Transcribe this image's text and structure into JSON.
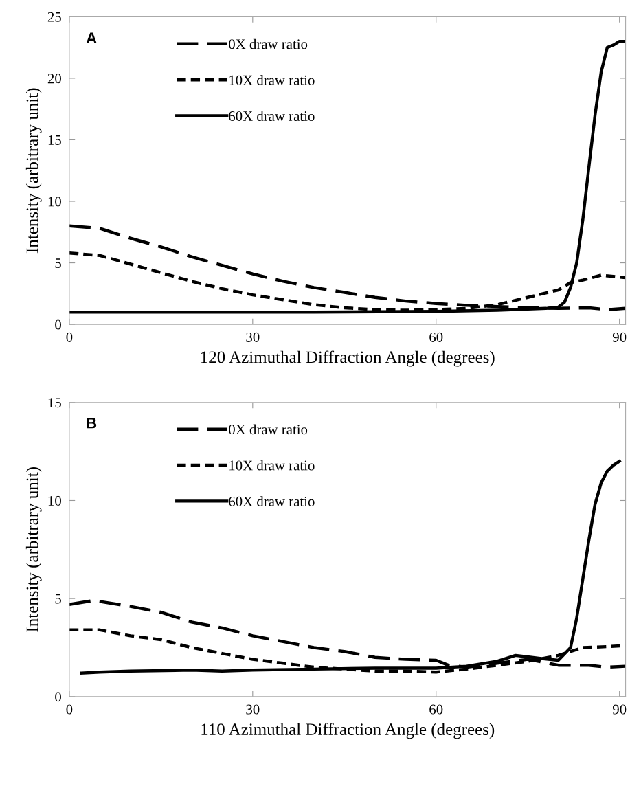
{
  "chart_data": [
    {
      "type": "line",
      "xlabel": "120 Azimuthal Diffraction Angle (degrees)",
      "ylabel": "Intensity (arbitrary unit)",
      "annotations": [
        "A"
      ],
      "xlim": [
        0,
        91
      ],
      "xticks": [
        0,
        30,
        60,
        90
      ],
      "ylim": [
        0,
        25
      ],
      "yticks": [
        0,
        5,
        10,
        15,
        20,
        25
      ],
      "grid": false,
      "legend": "top left",
      "marker": "none",
      "series": [
        {
          "name": "0X draw ratio",
          "color": "#000000",
          "line_style": "dashed",
          "x": [
            0,
            5,
            10,
            15,
            20,
            25,
            30,
            35,
            40,
            45,
            50,
            55,
            60,
            65,
            70,
            75,
            80,
            85,
            88,
            91
          ],
          "values": [
            8.0,
            7.8,
            7.0,
            6.3,
            5.5,
            4.8,
            4.1,
            3.5,
            3.0,
            2.6,
            2.2,
            1.9,
            1.7,
            1.55,
            1.45,
            1.35,
            1.3,
            1.35,
            1.2,
            1.3
          ]
        },
        {
          "name": "10X draw ratio",
          "color": "#000000",
          "line_style": "dotted",
          "x": [
            0,
            5,
            10,
            15,
            20,
            25,
            30,
            35,
            40,
            45,
            50,
            55,
            60,
            65,
            70,
            75,
            80,
            82,
            84,
            87,
            89,
            91
          ],
          "values": [
            5.8,
            5.6,
            4.9,
            4.2,
            3.5,
            2.9,
            2.4,
            2.0,
            1.6,
            1.35,
            1.2,
            1.15,
            1.2,
            1.3,
            1.6,
            2.2,
            2.8,
            3.4,
            3.6,
            4.0,
            3.9,
            3.8
          ]
        },
        {
          "name": "60X draw ratio",
          "color": "#000000",
          "line_style": "solid",
          "x": [
            0,
            20,
            40,
            60,
            70,
            78,
            80,
            81,
            82,
            83,
            84,
            85,
            86,
            87,
            88,
            89,
            90,
            91
          ],
          "values": [
            1.0,
            1.0,
            1.0,
            1.05,
            1.15,
            1.3,
            1.4,
            1.8,
            3.0,
            5.0,
            8.5,
            12.8,
            17.0,
            20.5,
            22.5,
            22.7,
            23.0,
            23.0
          ]
        }
      ]
    },
    {
      "type": "line",
      "xlabel": "110 Azimuthal Diffraction Angle (degrees)",
      "ylabel": "Intensity (arbitrary unit)",
      "annotations": [
        "B"
      ],
      "xlim": [
        0,
        91
      ],
      "xticks": [
        0,
        30,
        60,
        90
      ],
      "ylim": [
        0,
        15
      ],
      "yticks": [
        0,
        5,
        10,
        15
      ],
      "grid": false,
      "legend": "top left",
      "marker": "none",
      "series": [
        {
          "name": "0X draw ratio",
          "color": "#000000",
          "line_style": "dashed",
          "x": [
            0,
            4,
            10,
            15,
            20,
            25,
            30,
            35,
            40,
            45,
            50,
            55,
            60,
            62,
            65,
            70,
            75,
            80,
            85,
            88,
            91
          ],
          "values": [
            4.7,
            4.9,
            4.6,
            4.3,
            3.8,
            3.5,
            3.1,
            2.8,
            2.5,
            2.3,
            2.0,
            1.9,
            1.85,
            1.6,
            1.5,
            1.7,
            1.9,
            1.6,
            1.6,
            1.5,
            1.55
          ]
        },
        {
          "name": "10X draw ratio",
          "color": "#000000",
          "line_style": "dotted",
          "x": [
            0,
            5,
            10,
            15,
            20,
            25,
            30,
            35,
            40,
            45,
            50,
            55,
            60,
            65,
            70,
            75,
            80,
            84,
            88,
            91
          ],
          "values": [
            3.4,
            3.4,
            3.1,
            2.9,
            2.5,
            2.2,
            1.9,
            1.7,
            1.5,
            1.4,
            1.3,
            1.3,
            1.25,
            1.4,
            1.6,
            1.8,
            2.1,
            2.5,
            2.55,
            2.6
          ]
        },
        {
          "name": "60X draw ratio",
          "color": "#000000",
          "line_style": "solid",
          "x": [
            2,
            5,
            10,
            20,
            25,
            30,
            40,
            50,
            60,
            65,
            70,
            73,
            77,
            80,
            82,
            83,
            84,
            85,
            86,
            87,
            88,
            89,
            90
          ],
          "values": [
            1.2,
            1.25,
            1.3,
            1.35,
            1.3,
            1.35,
            1.4,
            1.45,
            1.45,
            1.55,
            1.8,
            2.1,
            1.95,
            1.85,
            2.5,
            4.0,
            6.0,
            8.0,
            9.8,
            10.9,
            11.5,
            11.8,
            12.0
          ]
        }
      ]
    }
  ]
}
